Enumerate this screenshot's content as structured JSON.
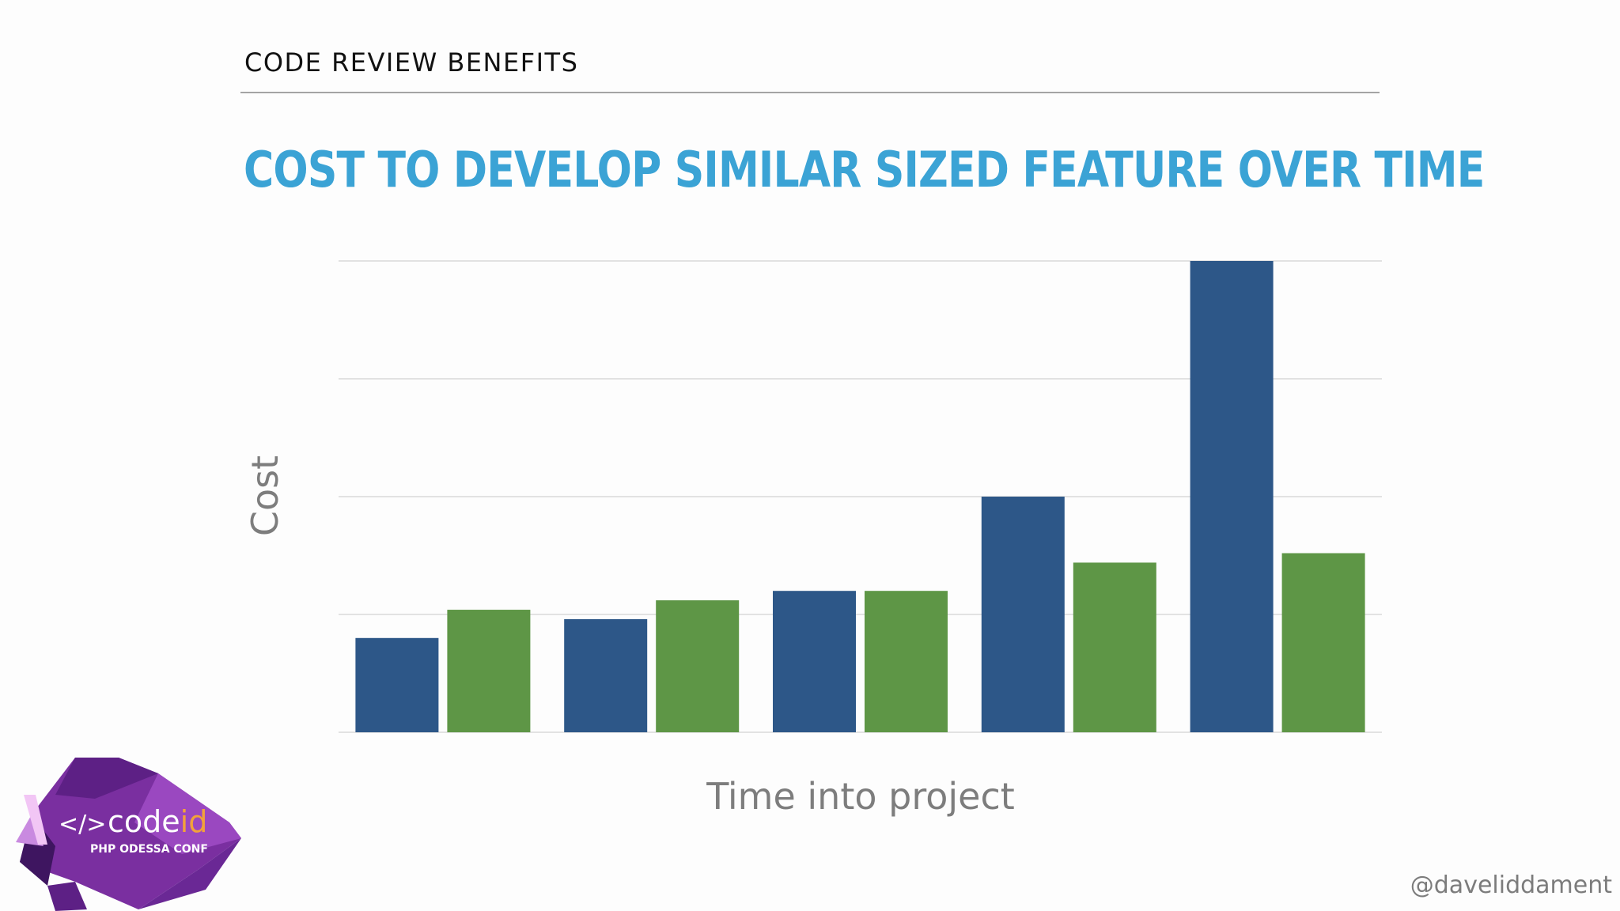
{
  "slide": {
    "section": "CODE REVIEW BENEFITS",
    "handle": "@daveliddament"
  },
  "logo": {
    "symbol": "</>",
    "name_part1": "code",
    "name_part2": "id",
    "subtitle": "PHP ODESSA CONF"
  },
  "colors": {
    "title": "#3ba3d5",
    "series_blue": "#2d5788",
    "series_green": "#5e9646",
    "grid": "#d9d9d9",
    "axis_label": "#7d7d7d",
    "logo_purple": "#7a2fa0"
  },
  "chart_data": {
    "type": "bar",
    "title": "COST TO DEVELOP SIMILAR SIZED FEATURE OVER TIME",
    "xlabel": "Time into project",
    "ylabel": "Cost",
    "categories": [
      "",
      "",
      "",
      "",
      ""
    ],
    "series": [
      {
        "values": [
          0.8,
          0.96,
          1.2,
          2.0,
          4.0
        ]
      },
      {
        "values": [
          1.04,
          1.12,
          1.2,
          1.44,
          1.52
        ]
      }
    ],
    "ylim": [
      0,
      4
    ],
    "yticks": [
      0,
      1,
      2,
      3,
      4
    ],
    "grid": true,
    "legend": "none"
  }
}
